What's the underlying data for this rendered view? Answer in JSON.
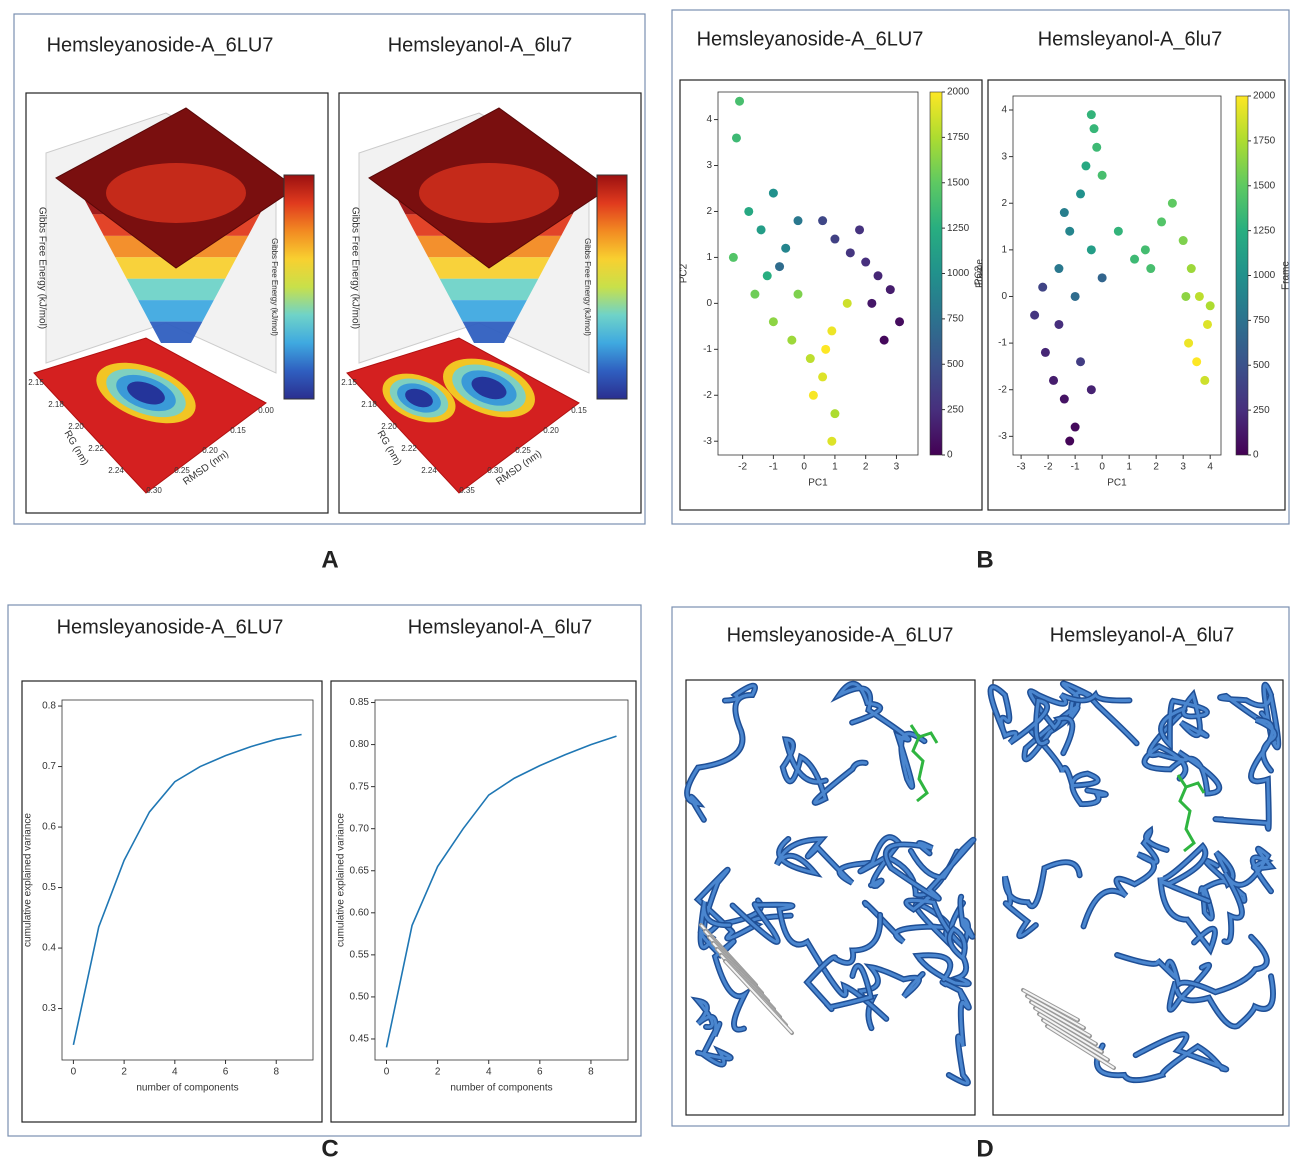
{
  "panel_labels": [
    "A",
    "B",
    "C",
    "D"
  ],
  "energy_landscapes": [
    {
      "title": "Hemsleyanoside-A_6LU7",
      "z_label": "Gibbs Free Energy (kJ/mol)",
      "x_label": "RMSD (nm)",
      "y_label": "RG (nm)",
      "colorbar_label": "Gibbs Free Energy (kJ/mol)",
      "rg_ticks": [
        "2.15",
        "2.18",
        "2.20",
        "2.22",
        "2.24"
      ],
      "rmsd_ticks": [
        "0.00",
        "0.15",
        "0.20",
        "0.25",
        "0.30"
      ]
    },
    {
      "title": "Hemsleyanol-A_6lu7",
      "z_label": "Gibbs Free Energy (kJ/mol)",
      "x_label": "RMSD (nm)",
      "y_label": "RG (nm)",
      "colorbar_label": "Gibbs Free Energy (kJ/mol)",
      "rg_ticks": [
        "2.15",
        "2.18",
        "2.20",
        "2.22",
        "2.24"
      ],
      "rmsd_ticks": [
        "0.15",
        "0.20",
        "0.25",
        "0.30",
        "0.35"
      ]
    }
  ],
  "chart_data": [
    {
      "type": "scatter",
      "title": "Hemsleyanoside-A_6LU7",
      "x_label": "PC1",
      "y_label": "PC2",
      "colormap": "viridis",
      "colorbar_label": "Frame",
      "x": [
        1.0,
        1.5,
        2.0,
        2.4,
        2.8,
        3.1,
        1.8,
        2.2,
        0.6,
        2.6,
        -1.8,
        -1.4,
        -1.0,
        -0.6,
        -0.2,
        -2.2,
        -1.2,
        -0.8,
        -2.3,
        -1.6,
        -1.0,
        -0.4,
        0.2,
        0.6,
        0.9,
        1.4,
        0.3,
        -0.2,
        0.7,
        1.0,
        -2.1,
        0.9
      ],
      "values": [
        1.4,
        1.1,
        0.9,
        0.6,
        0.3,
        -0.4,
        1.6,
        0.0,
        1.8,
        -0.8,
        2.0,
        1.6,
        2.4,
        1.2,
        1.8,
        3.6,
        0.6,
        0.8,
        1.0,
        0.2,
        -0.4,
        -0.8,
        -1.2,
        -1.6,
        -0.6,
        0.0,
        -2.0,
        0.2,
        -1.0,
        -2.4,
        4.4,
        -3.0
      ],
      "frame": [
        380,
        300,
        250,
        200,
        150,
        60,
        280,
        120,
        420,
        40,
        1200,
        1100,
        1000,
        900,
        800,
        1350,
        1250,
        700,
        1450,
        1550,
        1650,
        1700,
        1800,
        1900,
        1950,
        1850,
        1980,
        1600,
        2000,
        1750,
        1400,
        1900
      ],
      "xlim": [
        -2.8,
        3.7
      ],
      "ylim": [
        -3.3,
        4.6
      ],
      "xticks": [
        -2,
        -1,
        0,
        1,
        2,
        3
      ],
      "yticks": [
        -3,
        -2,
        -1,
        0,
        1,
        2,
        3,
        4
      ],
      "clim": [
        0,
        2000
      ],
      "colorbar_ticks": [
        0,
        250,
        500,
        750,
        1000,
        1250,
        1500,
        1750,
        2000
      ]
    },
    {
      "type": "scatter",
      "title": "Hemsleyanol-A_6lu7",
      "x_label": "PC1",
      "y_label": "PC2",
      "colormap": "viridis",
      "colorbar_label": "Frame",
      "x": [
        -2.5,
        -2.1,
        -1.8,
        -1.4,
        -1.0,
        -2.2,
        -1.6,
        -0.8,
        -1.2,
        -0.4,
        -1.6,
        -1.2,
        -0.8,
        -0.4,
        -1.0,
        -0.6,
        -1.4,
        0.0,
        -0.4,
        -0.2,
        0.0,
        0.6,
        1.2,
        1.8,
        2.2,
        2.6,
        1.6,
        -0.3,
        3.0,
        3.3,
        3.6,
        3.9,
        3.2,
        3.5,
        3.8,
        4.0,
        3.1
      ],
      "values": [
        -0.4,
        -1.2,
        -1.8,
        -2.2,
        -2.8,
        0.2,
        -0.6,
        -1.4,
        -3.1,
        -2.0,
        0.6,
        1.4,
        2.2,
        1.0,
        0.0,
        2.8,
        1.8,
        0.4,
        3.9,
        3.2,
        2.6,
        1.4,
        0.8,
        0.6,
        1.6,
        2.0,
        1.0,
        3.6,
        1.2,
        0.6,
        0.0,
        -0.6,
        -1.0,
        -1.4,
        -1.8,
        -0.2,
        0.0
      ],
      "frame": [
        300,
        200,
        150,
        100,
        50,
        400,
        250,
        350,
        20,
        180,
        800,
        900,
        1000,
        1100,
        700,
        1200,
        850,
        650,
        1300,
        1350,
        1400,
        1300,
        1350,
        1400,
        1450,
        1500,
        1380,
        1320,
        1600,
        1700,
        1800,
        1900,
        1950,
        2000,
        1850,
        1750,
        1650
      ],
      "xlim": [
        -3.3,
        4.4
      ],
      "ylim": [
        -3.4,
        4.3
      ],
      "xticks": [
        -3,
        -2,
        -1,
        0,
        1,
        2,
        3,
        4
      ],
      "yticks": [
        -3,
        -2,
        -1,
        0,
        1,
        2,
        3,
        4
      ],
      "clim": [
        0,
        2000
      ],
      "colorbar_ticks": [
        0,
        250,
        500,
        750,
        1000,
        1250,
        1500,
        1750,
        2000
      ]
    },
    {
      "type": "line",
      "title": "Hemsleyanoside-A_6LU7",
      "x_label": "number of components",
      "y_label": "cumulative explained variance",
      "color": "#1f77b4",
      "x": [
        0,
        1,
        2,
        3,
        4,
        5,
        6,
        7,
        8,
        9
      ],
      "values": [
        0.24,
        0.435,
        0.545,
        0.625,
        0.675,
        0.7,
        0.718,
        0.733,
        0.745,
        0.753
      ],
      "xlim": [
        -0.45,
        9.45
      ],
      "ylim": [
        0.215,
        0.81
      ],
      "xticks": [
        0,
        2,
        4,
        6,
        8
      ],
      "yticks": [
        0.3,
        0.4,
        0.5,
        0.6,
        0.7,
        0.8
      ]
    },
    {
      "type": "line",
      "title": "Hemsleyanol-A_6lu7",
      "x_label": "number of components",
      "y_label": "cumulative explained variance",
      "color": "#1f77b4",
      "x": [
        0,
        1,
        2,
        3,
        4,
        5,
        6,
        7,
        8,
        9
      ],
      "values": [
        0.44,
        0.585,
        0.655,
        0.7,
        0.74,
        0.76,
        0.775,
        0.788,
        0.8,
        0.81
      ],
      "xlim": [
        -0.45,
        9.45
      ],
      "ylim": [
        0.425,
        0.853
      ],
      "xticks": [
        0,
        2,
        4,
        6,
        8
      ],
      "yticks": [
        0.45,
        {
          "value": 0.5,
          "label": "0.50"
        },
        0.55,
        {
          "value": 0.6,
          "label": "0.60"
        },
        0.65,
        {
          "value": 0.7,
          "label": "0.70"
        },
        0.75,
        {
          "value": 0.8,
          "label": "0.80"
        },
        0.85
      ]
    }
  ],
  "structures": [
    {
      "title": "Hemsleyanoside-A_6LU7"
    },
    {
      "title": "Hemsleyanol-A_6lu7"
    }
  ]
}
